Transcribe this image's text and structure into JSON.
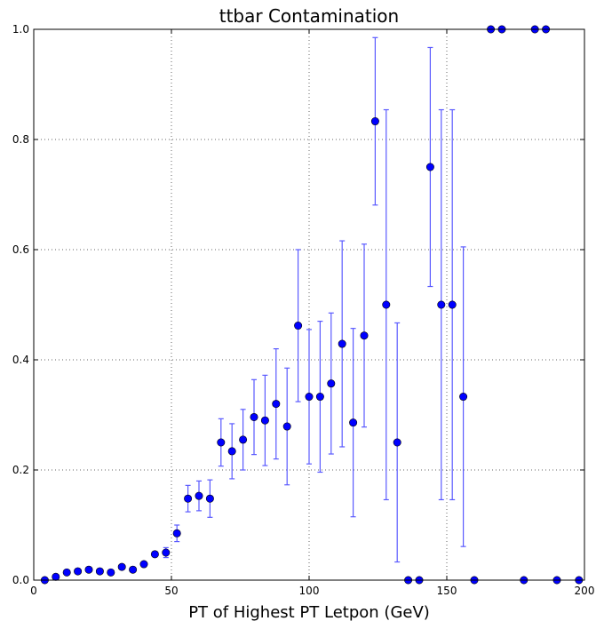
{
  "chart_data": {
    "type": "scatter",
    "title": "ttbar Contamination",
    "xlabel": "PT of Highest PT Letpon (GeV)",
    "ylabel": "",
    "xlim": [
      0,
      200
    ],
    "ylim": [
      0,
      1.0
    ],
    "xticks": [
      "0",
      "50",
      "100",
      "150",
      "200"
    ],
    "yticks": [
      "0.0",
      "0.2",
      "0.4",
      "0.6",
      "0.8",
      "1.0"
    ],
    "grid": true,
    "legend": "none",
    "colors": {
      "marker": "#0000ff",
      "errorbar": "#5a5aff",
      "grid": "#000000"
    },
    "series": [
      {
        "marker": "circle",
        "points": [
          {
            "x": 4,
            "y": 0.0
          },
          {
            "x": 8,
            "y": 0.006
          },
          {
            "x": 12,
            "y": 0.014
          },
          {
            "x": 16,
            "y": 0.016
          },
          {
            "x": 20,
            "y": 0.019
          },
          {
            "x": 24,
            "y": 0.016
          },
          {
            "x": 28,
            "y": 0.014
          },
          {
            "x": 32,
            "y": 0.024
          },
          {
            "x": 36,
            "y": 0.019
          },
          {
            "x": 40,
            "y": 0.029
          },
          {
            "x": 44,
            "y": 0.047
          },
          {
            "x": 48,
            "y": 0.05,
            "err": 0.009
          },
          {
            "x": 52,
            "y": 0.085,
            "err": 0.015
          },
          {
            "x": 56,
            "y": 0.148,
            "err": 0.024
          },
          {
            "x": 60,
            "y": 0.153,
            "err": 0.027
          },
          {
            "x": 64,
            "y": 0.148,
            "err": 0.034
          },
          {
            "x": 68,
            "y": 0.25,
            "err": 0.043
          },
          {
            "x": 72,
            "y": 0.234,
            "err": 0.05
          },
          {
            "x": 76,
            "y": 0.255,
            "err": 0.055
          },
          {
            "x": 80,
            "y": 0.296,
            "err": 0.068
          },
          {
            "x": 84,
            "y": 0.29,
            "err": 0.082
          },
          {
            "x": 88,
            "y": 0.32,
            "err": 0.1
          },
          {
            "x": 92,
            "y": 0.279,
            "err": 0.106
          },
          {
            "x": 96,
            "y": 0.462,
            "err": 0.138
          },
          {
            "x": 100,
            "y": 0.333,
            "err": 0.122
          },
          {
            "x": 104,
            "y": 0.333,
            "err": 0.137
          },
          {
            "x": 108,
            "y": 0.357,
            "err": 0.128
          },
          {
            "x": 112,
            "y": 0.429,
            "err": 0.187
          },
          {
            "x": 116,
            "y": 0.286,
            "err": 0.171
          },
          {
            "x": 120,
            "y": 0.444,
            "err": 0.166
          },
          {
            "x": 124,
            "y": 0.833,
            "err": 0.152
          },
          {
            "x": 128,
            "y": 0.5,
            "err": 0.354
          },
          {
            "x": 132,
            "y": 0.25,
            "err": 0.217
          },
          {
            "x": 136,
            "y": 0.0
          },
          {
            "x": 140,
            "y": 0.0
          },
          {
            "x": 144,
            "y": 0.75,
            "err": 0.217
          },
          {
            "x": 148,
            "y": 0.5,
            "err": 0.354
          },
          {
            "x": 152,
            "y": 0.5,
            "err": 0.354
          },
          {
            "x": 156,
            "y": 0.333,
            "err": 0.272
          },
          {
            "x": 160,
            "y": 0.0
          },
          {
            "x": 166,
            "y": 1.0
          },
          {
            "x": 170,
            "y": 1.0
          },
          {
            "x": 178,
            "y": 0.0
          },
          {
            "x": 182,
            "y": 1.0
          },
          {
            "x": 186,
            "y": 1.0
          },
          {
            "x": 190,
            "y": 0.0
          },
          {
            "x": 198,
            "y": 0.0
          }
        ]
      }
    ]
  }
}
